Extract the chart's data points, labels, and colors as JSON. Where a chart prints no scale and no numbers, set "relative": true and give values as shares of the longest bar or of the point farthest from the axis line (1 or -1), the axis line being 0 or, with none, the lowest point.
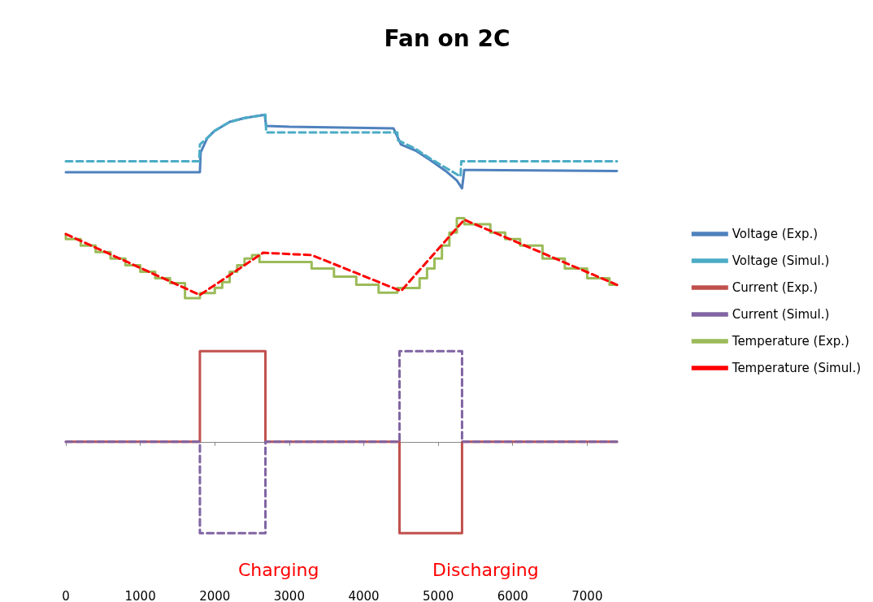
{
  "chart_data": {
    "type": "line",
    "title": "Fan on 2C",
    "relative": true,
    "legend": "right",
    "marker": "none",
    "xlim": [
      0,
      7400
    ],
    "xticks": [
      0,
      1000,
      2000,
      3000,
      4000,
      5000,
      6000,
      7000
    ],
    "tick_labels": "x",
    "annotations": [
      "Charging",
      "Discharging"
    ],
    "series": [
      {
        "name": "Voltage (Exp.)",
        "color": "#4f81bd",
        "line_style": "solid",
        "x": [
          0,
          1800,
          1810,
          1900,
          2000,
          2200,
          2400,
          2670,
          2690,
          3000,
          4400,
          4450,
          4500,
          4700,
          4900,
          5100,
          5250,
          5320,
          5350,
          5500,
          7400
        ],
        "values": [
          0.824,
          0.824,
          0.885,
          0.929,
          0.951,
          0.978,
          0.99,
          1.0,
          0.966,
          0.963,
          0.958,
          0.934,
          0.909,
          0.89,
          0.86,
          0.828,
          0.799,
          0.775,
          0.831,
          0.831,
          0.828
        ]
      },
      {
        "name": "Voltage (Simul.)",
        "color": "#4bacc6",
        "line_style": "dashed",
        "x": [
          0,
          1790,
          1800,
          1900,
          2000,
          2200,
          2400,
          2680,
          2690,
          4450,
          4460,
          4700,
          4900,
          5100,
          5300,
          5310,
          7400
        ],
        "values": [
          0.858,
          0.858,
          0.909,
          0.929,
          0.951,
          0.978,
          0.99,
          1.0,
          0.946,
          0.946,
          0.922,
          0.895,
          0.865,
          0.838,
          0.811,
          0.858,
          0.858
        ]
      },
      {
        "name": "Current (Exp.)",
        "color": "#c0504d",
        "line_style": "solid",
        "x": [
          0,
          1800,
          1800,
          2680,
          2680,
          4480,
          4480,
          5320,
          5320,
          7400
        ],
        "values": [
          0,
          0,
          0.277,
          0.277,
          0,
          0,
          -0.279,
          -0.279,
          0,
          0
        ]
      },
      {
        "name": "Current (Simul.)",
        "color": "#8064a2",
        "line_style": "dashed",
        "x": [
          0,
          1800,
          1800,
          2680,
          2680,
          4480,
          4480,
          5320,
          5320,
          7400
        ],
        "values": [
          0,
          0,
          -0.279,
          -0.279,
          0,
          0,
          0.277,
          0.277,
          0,
          0
        ]
      },
      {
        "name": "Temperature (Exp.)",
        "color": "#9bbb59",
        "type": "step",
        "line_style": "solid",
        "x": [
          0,
          200,
          400,
          600,
          800,
          1000,
          1200,
          1400,
          1600,
          1800,
          2000,
          2100,
          2200,
          2300,
          2400,
          2500,
          2600,
          3300,
          3600,
          3900,
          4200,
          4450,
          4750,
          4850,
          4950,
          5050,
          5150,
          5250,
          5350,
          5700,
          5900,
          6100,
          6400,
          6700,
          7000,
          7300,
          7400
        ],
        "values": [
          0.635,
          0.62,
          0.6,
          0.58,
          0.56,
          0.54,
          0.52,
          0.5,
          0.485,
          0.439,
          0.455,
          0.471,
          0.488,
          0.52,
          0.54,
          0.56,
          0.571,
          0.55,
          0.53,
          0.505,
          0.48,
          0.456,
          0.47,
          0.5,
          0.53,
          0.56,
          0.6,
          0.64,
          0.684,
          0.665,
          0.64,
          0.62,
          0.6,
          0.56,
          0.53,
          0.5,
          0.48
        ]
      },
      {
        "name": "Temperature (Simul.)",
        "color": "#ff0000",
        "line_style": "dashed",
        "x": [
          0,
          1800,
          2650,
          3300,
          4500,
          5350,
          7400
        ],
        "values": [
          0.635,
          0.449,
          0.578,
          0.571,
          0.461,
          0.679,
          0.48
        ]
      }
    ]
  }
}
